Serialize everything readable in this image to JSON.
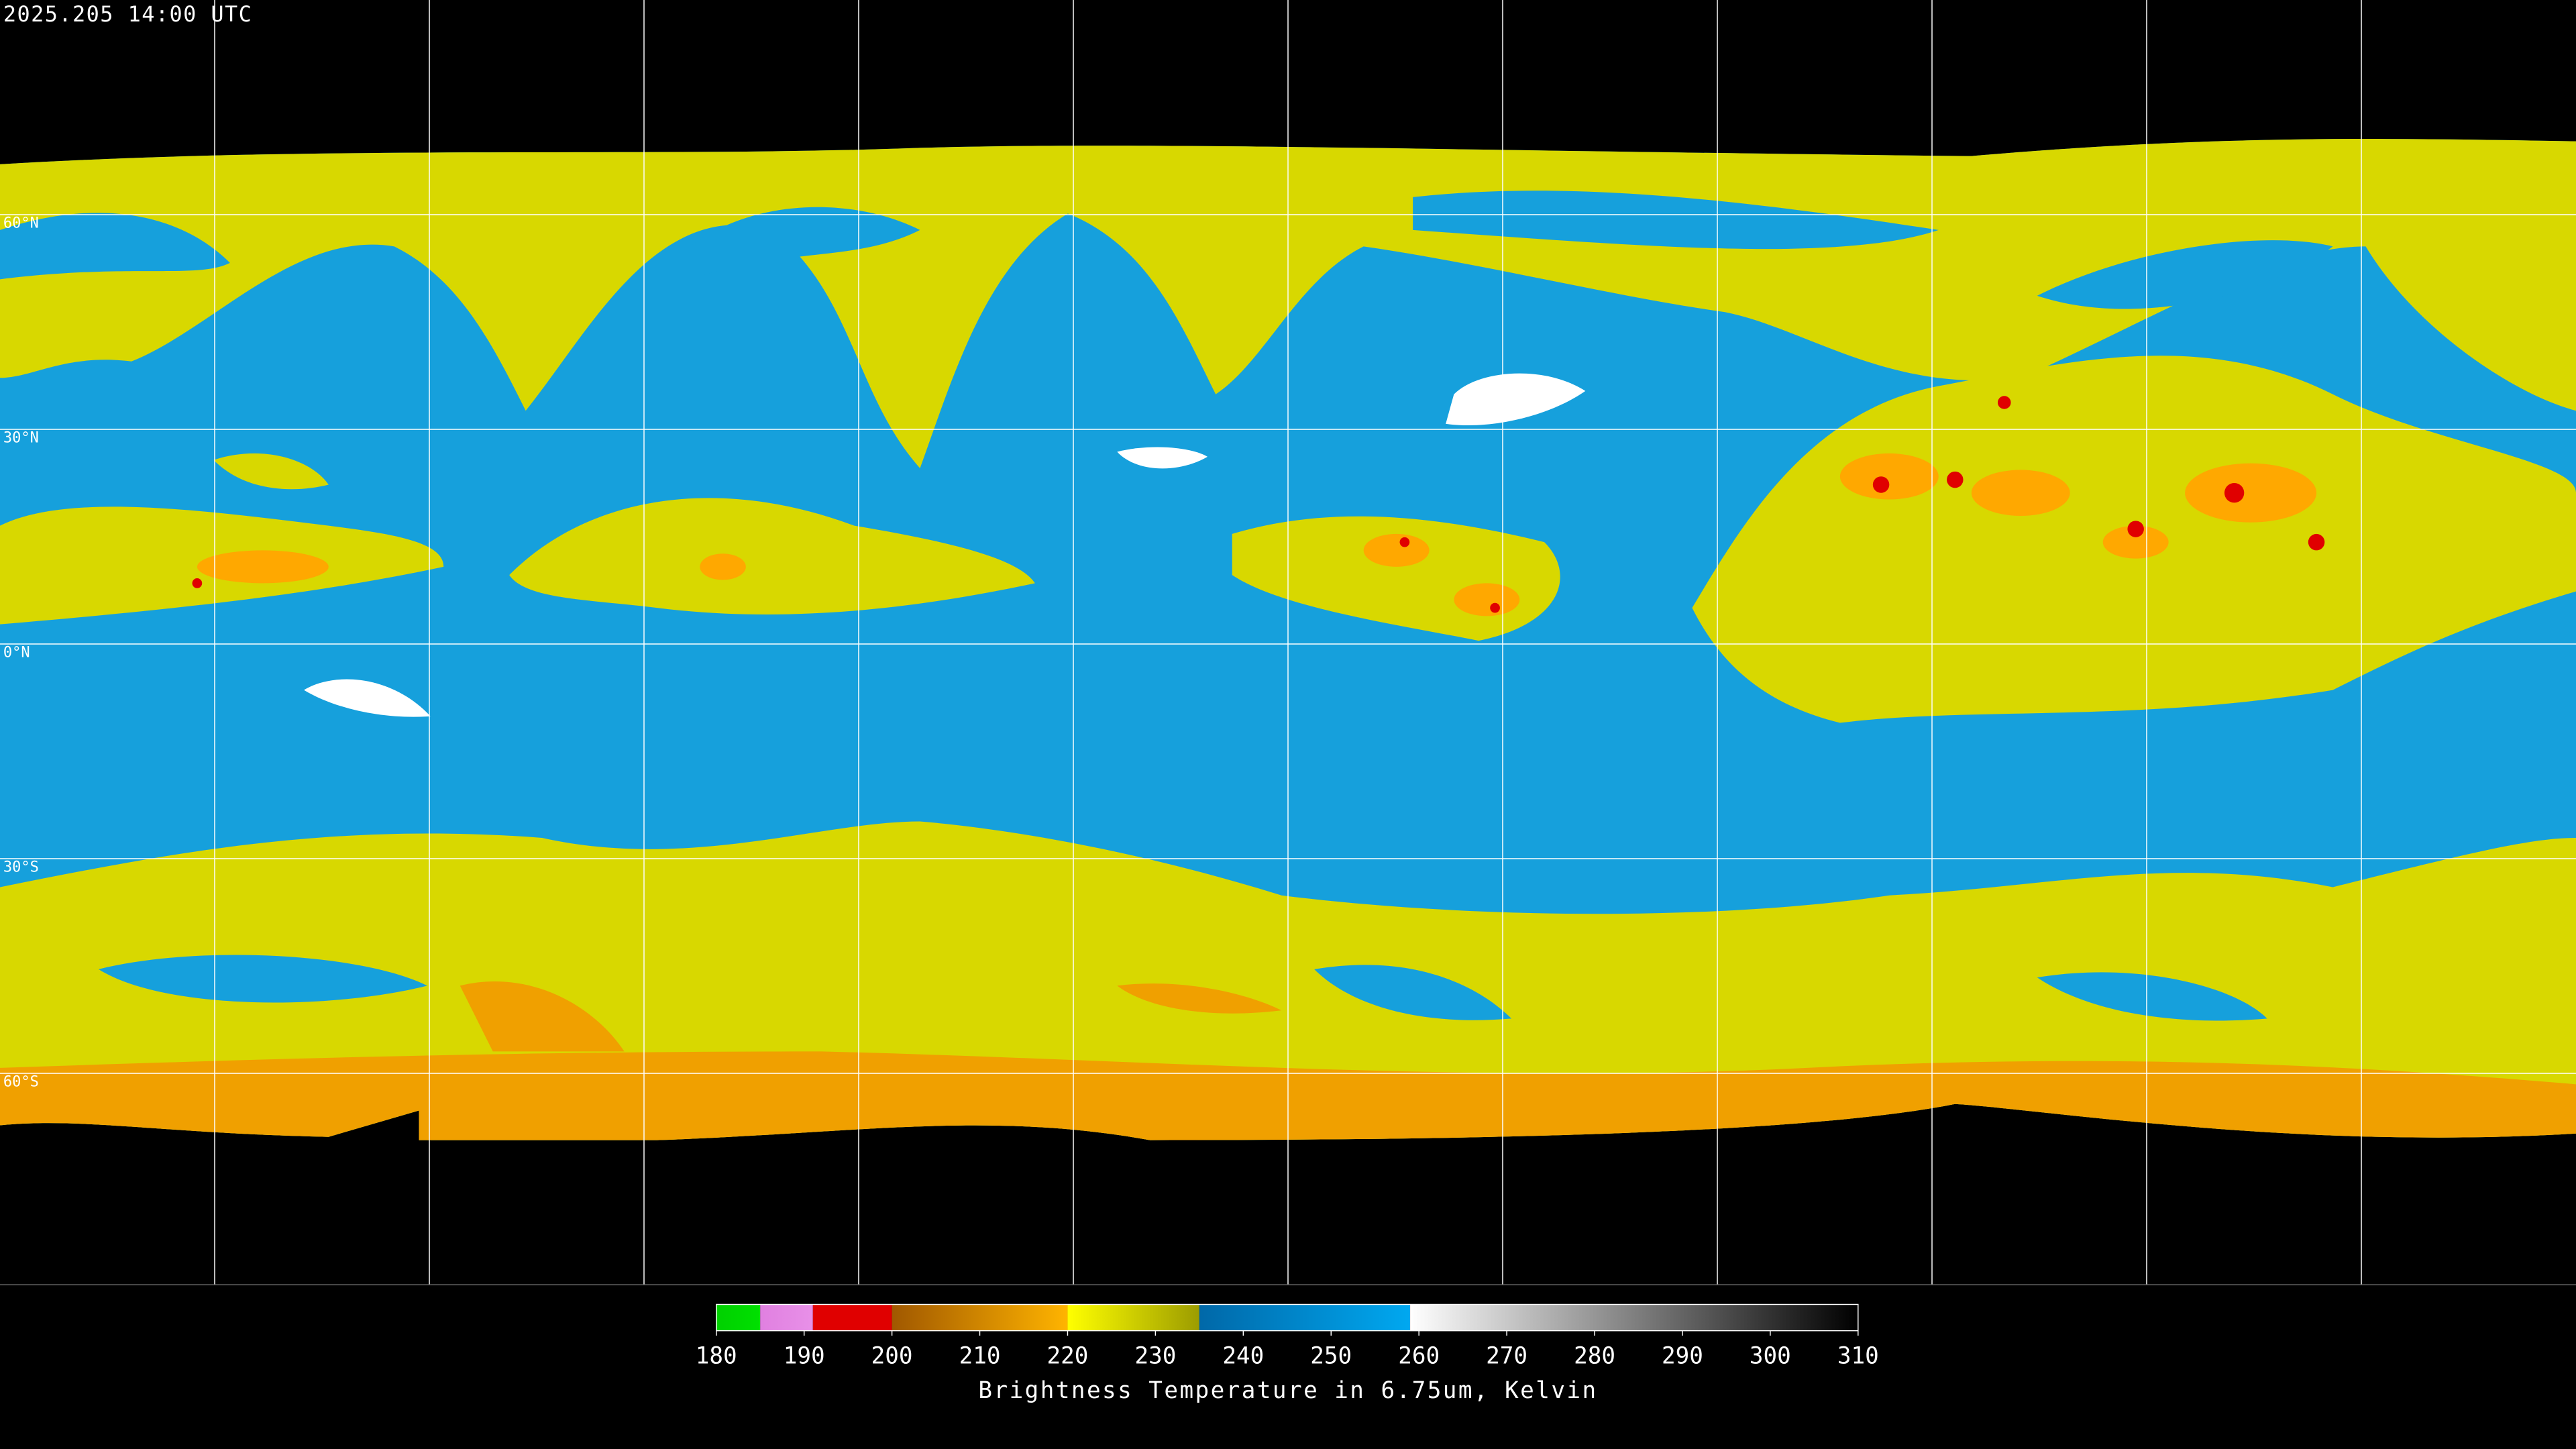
{
  "header": {
    "timestamp": "2025.205 14:00 UTC"
  },
  "map": {
    "lat_labels": [
      "60°N",
      "30°N",
      "0°N",
      "30°S",
      "60°S"
    ]
  },
  "colorbar": {
    "range": [
      180,
      310
    ],
    "ticks": [
      180,
      190,
      200,
      210,
      220,
      230,
      240,
      250,
      260,
      270,
      280,
      290,
      300,
      310
    ],
    "label": "Brightness Temperature in 6.75um, Kelvin",
    "segments": [
      {
        "from": 180,
        "to": 185,
        "colors": [
          "#00d000",
          "#00e000"
        ]
      },
      {
        "from": 185,
        "to": 191,
        "colors": [
          "#e080e0",
          "#e890e8"
        ]
      },
      {
        "from": 191,
        "to": 200,
        "colors": [
          "#e00000",
          "#e00000"
        ]
      },
      {
        "from": 200,
        "to": 220,
        "colors": [
          "#a05800",
          "#ffb400"
        ]
      },
      {
        "from": 220,
        "to": 235,
        "colors": [
          "#ffff00",
          "#9c9c00"
        ]
      },
      {
        "from": 235,
        "to": 259,
        "colors": [
          "#0068a8",
          "#00a8f0"
        ]
      },
      {
        "from": 259,
        "to": 310,
        "colors": [
          "#ffffff",
          "#000000"
        ]
      }
    ]
  }
}
